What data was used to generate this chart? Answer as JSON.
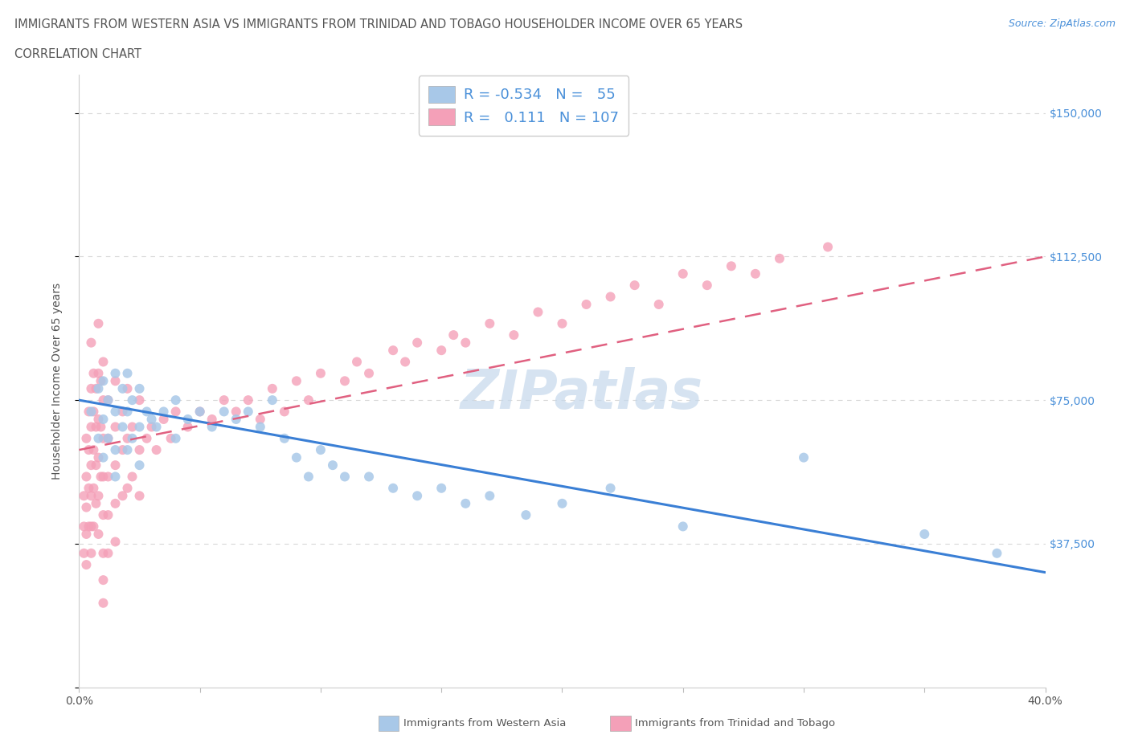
{
  "title_line1": "IMMIGRANTS FROM WESTERN ASIA VS IMMIGRANTS FROM TRINIDAD AND TOBAGO HOUSEHOLDER INCOME OVER 65 YEARS",
  "title_line2": "CORRELATION CHART",
  "source_text": "Source: ZipAtlas.com",
  "ylabel": "Householder Income Over 65 years",
  "xlim": [
    0.0,
    0.4
  ],
  "ylim": [
    0,
    160000
  ],
  "xtick_positions": [
    0.0,
    0.05,
    0.1,
    0.15,
    0.2,
    0.25,
    0.3,
    0.35,
    0.4
  ],
  "xticklabels": [
    "0.0%",
    "",
    "",
    "",
    "",
    "",
    "",
    "",
    "40.0%"
  ],
  "ytick_vals": [
    0,
    37500,
    75000,
    112500,
    150000
  ],
  "ytick_labels": [
    "",
    "$37,500",
    "$75,000",
    "$112,500",
    "$150,000"
  ],
  "color_western_asia": "#a8c8e8",
  "color_trinidad": "#f4a0b8",
  "color_blue_line": "#3a7fd5",
  "color_pink_line": "#e06080",
  "color_title": "#555555",
  "color_source": "#4a90d9",
  "color_grid": "#d8d8d8",
  "watermark_text": "ZIPatlas",
  "watermark_color": "#c5d8ec",
  "legend_R_western": "-0.534",
  "legend_N_western": "55",
  "legend_R_trinidad": "0.111",
  "legend_N_trinidad": "107",
  "blue_trend_x0": 0.0,
  "blue_trend_y0": 75000,
  "blue_trend_x1": 0.4,
  "blue_trend_y1": 30000,
  "pink_trend_x0": 0.0,
  "pink_trend_y0": 62000,
  "pink_trend_x1": 0.4,
  "pink_trend_y1": 112500,
  "western_asia_x": [
    0.005,
    0.008,
    0.008,
    0.01,
    0.01,
    0.01,
    0.012,
    0.012,
    0.015,
    0.015,
    0.015,
    0.015,
    0.018,
    0.018,
    0.02,
    0.02,
    0.02,
    0.022,
    0.022,
    0.025,
    0.025,
    0.025,
    0.028,
    0.03,
    0.032,
    0.035,
    0.04,
    0.04,
    0.045,
    0.05,
    0.055,
    0.06,
    0.065,
    0.07,
    0.075,
    0.08,
    0.085,
    0.09,
    0.095,
    0.1,
    0.105,
    0.11,
    0.12,
    0.13,
    0.14,
    0.15,
    0.16,
    0.17,
    0.185,
    0.2,
    0.22,
    0.25,
    0.3,
    0.35,
    0.38
  ],
  "western_asia_y": [
    72000,
    78000,
    65000,
    80000,
    70000,
    60000,
    75000,
    65000,
    82000,
    72000,
    62000,
    55000,
    78000,
    68000,
    82000,
    72000,
    62000,
    75000,
    65000,
    78000,
    68000,
    58000,
    72000,
    70000,
    68000,
    72000,
    75000,
    65000,
    70000,
    72000,
    68000,
    72000,
    70000,
    72000,
    68000,
    75000,
    65000,
    60000,
    55000,
    62000,
    58000,
    55000,
    55000,
    52000,
    50000,
    52000,
    48000,
    50000,
    45000,
    48000,
    52000,
    42000,
    60000,
    40000,
    35000
  ],
  "trinidad_x": [
    0.002,
    0.002,
    0.002,
    0.003,
    0.003,
    0.003,
    0.003,
    0.003,
    0.004,
    0.004,
    0.004,
    0.004,
    0.005,
    0.005,
    0.005,
    0.005,
    0.005,
    0.005,
    0.005,
    0.006,
    0.006,
    0.006,
    0.006,
    0.006,
    0.007,
    0.007,
    0.007,
    0.007,
    0.008,
    0.008,
    0.008,
    0.008,
    0.008,
    0.008,
    0.009,
    0.009,
    0.009,
    0.01,
    0.01,
    0.01,
    0.01,
    0.01,
    0.01,
    0.01,
    0.01,
    0.012,
    0.012,
    0.012,
    0.012,
    0.012,
    0.015,
    0.015,
    0.015,
    0.015,
    0.015,
    0.018,
    0.018,
    0.018,
    0.02,
    0.02,
    0.02,
    0.022,
    0.022,
    0.025,
    0.025,
    0.025,
    0.028,
    0.03,
    0.032,
    0.035,
    0.038,
    0.04,
    0.045,
    0.05,
    0.055,
    0.06,
    0.065,
    0.07,
    0.075,
    0.08,
    0.085,
    0.09,
    0.095,
    0.1,
    0.11,
    0.115,
    0.12,
    0.13,
    0.135,
    0.14,
    0.15,
    0.155,
    0.16,
    0.17,
    0.18,
    0.19,
    0.2,
    0.21,
    0.22,
    0.23,
    0.24,
    0.25,
    0.26,
    0.27,
    0.28,
    0.29,
    0.31
  ],
  "trinidad_y": [
    50000,
    42000,
    35000,
    65000,
    55000,
    47000,
    40000,
    32000,
    72000,
    62000,
    52000,
    42000,
    90000,
    78000,
    68000,
    58000,
    50000,
    42000,
    35000,
    82000,
    72000,
    62000,
    52000,
    42000,
    78000,
    68000,
    58000,
    48000,
    95000,
    82000,
    70000,
    60000,
    50000,
    40000,
    80000,
    68000,
    55000,
    85000,
    75000,
    65000,
    55000,
    45000,
    35000,
    28000,
    22000,
    75000,
    65000,
    55000,
    45000,
    35000,
    80000,
    68000,
    58000,
    48000,
    38000,
    72000,
    62000,
    50000,
    78000,
    65000,
    52000,
    68000,
    55000,
    75000,
    62000,
    50000,
    65000,
    68000,
    62000,
    70000,
    65000,
    72000,
    68000,
    72000,
    70000,
    75000,
    72000,
    75000,
    70000,
    78000,
    72000,
    80000,
    75000,
    82000,
    80000,
    85000,
    82000,
    88000,
    85000,
    90000,
    88000,
    92000,
    90000,
    95000,
    92000,
    98000,
    95000,
    100000,
    102000,
    105000,
    100000,
    108000,
    105000,
    110000,
    108000,
    112000,
    115000
  ]
}
